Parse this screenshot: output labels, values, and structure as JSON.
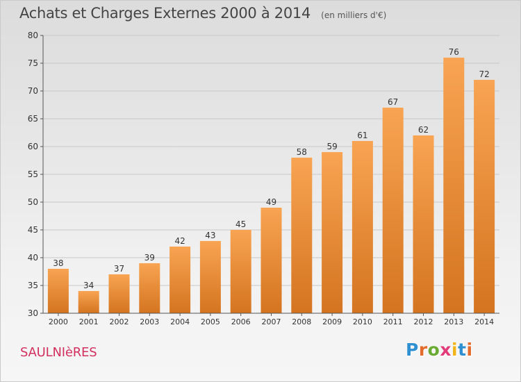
{
  "header": {
    "title": "Achats et Charges Externes 2000 à 2014",
    "unit": "(en milliers d'€)"
  },
  "footer": {
    "commune": "SAULNIèRES",
    "brand_letters": [
      "P",
      "r",
      "o",
      "x",
      "i",
      "t",
      "i"
    ],
    "brand_colors": [
      "#2e8fd1",
      "#e36b2c",
      "#6aaa32",
      "#e23b7a",
      "#f1b316",
      "#2e8fd1",
      "#e36b2c"
    ]
  },
  "colors": {
    "bar_top": "#f8a452",
    "bar_bottom": "#d47420",
    "grid": "#c8c8c8",
    "axis": "#555555"
  },
  "chart_data": {
    "type": "bar",
    "categories": [
      "2000",
      "2001",
      "2002",
      "2003",
      "2004",
      "2005",
      "2006",
      "2007",
      "2008",
      "2009",
      "2010",
      "2011",
      "2012",
      "2013",
      "2014"
    ],
    "values": [
      38,
      34,
      37,
      39,
      42,
      43,
      45,
      49,
      58,
      59,
      61,
      67,
      62,
      76,
      72
    ],
    "data_labels": [
      "38",
      "34",
      "37",
      "39",
      "42",
      "43",
      "45",
      "49",
      "58",
      "59",
      "61",
      "67",
      "62",
      "76",
      "72"
    ],
    "yticks": [
      30,
      35,
      40,
      45,
      50,
      55,
      60,
      65,
      70,
      75,
      80
    ],
    "ylim": [
      30,
      80
    ],
    "grid": true
  }
}
